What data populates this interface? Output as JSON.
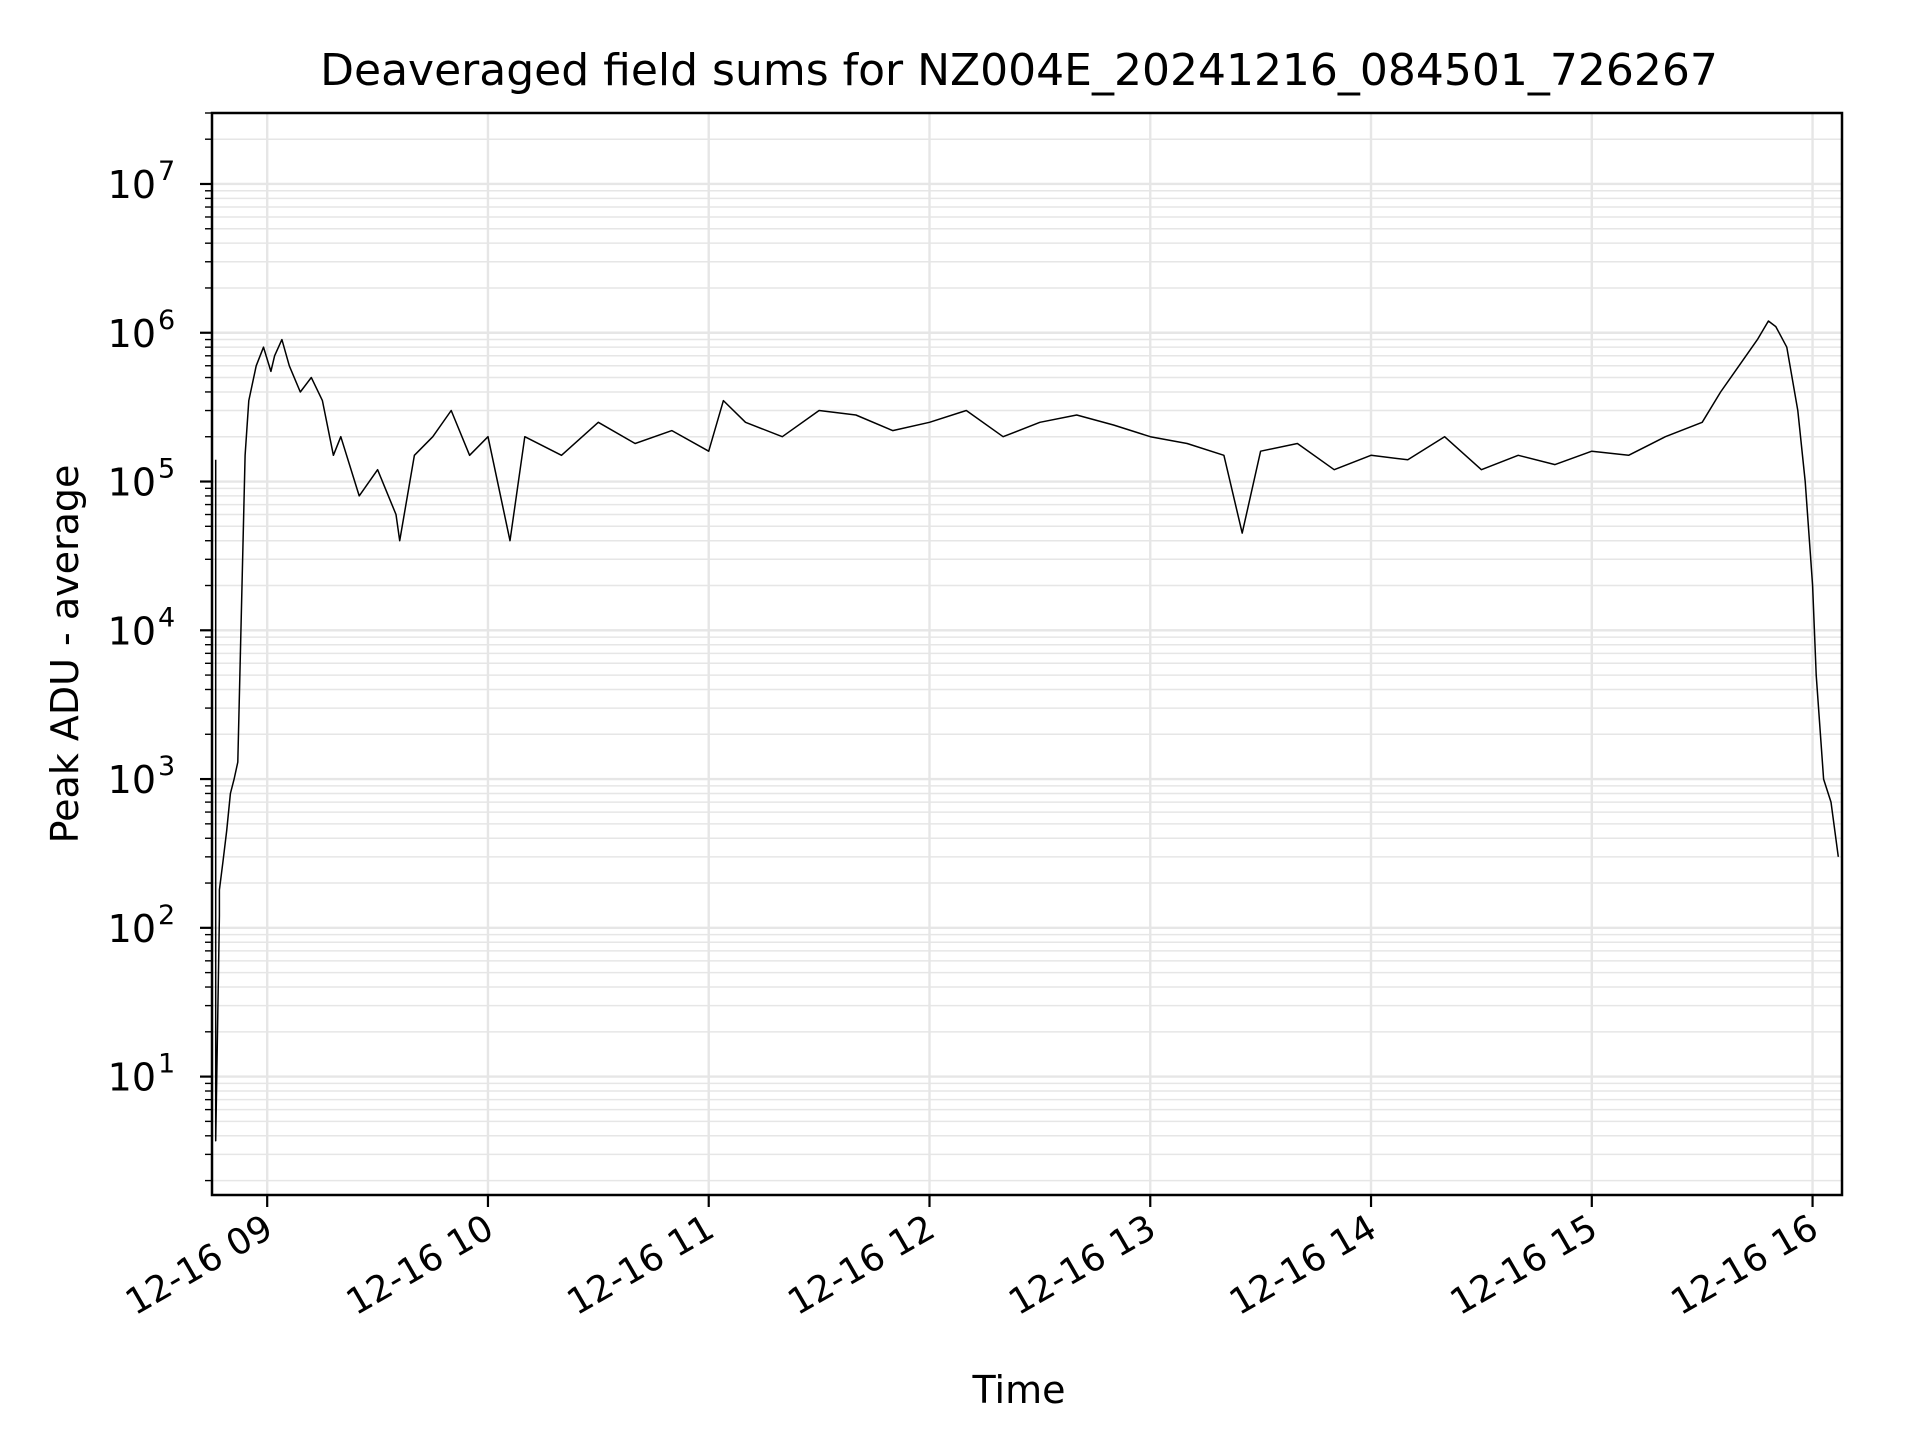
{
  "chart_data": {
    "type": "line",
    "title": "Deaveraged field sums for NZ004E_20241216_084501_726267",
    "xlabel": "Time",
    "ylabel": "Peak ADU - average",
    "yscale": "log",
    "ylim": [
      1.6,
      30000000
    ],
    "xlim": [
      "2024-12-16 08:45",
      "2024-12-16 16:08"
    ],
    "grid": true,
    "x_ticks": [
      {
        "value": "2024-12-16 09:00",
        "label": "12-16 09"
      },
      {
        "value": "2024-12-16 10:00",
        "label": "12-16 10"
      },
      {
        "value": "2024-12-16 11:00",
        "label": "12-16 11"
      },
      {
        "value": "2024-12-16 12:00",
        "label": "12-16 12"
      },
      {
        "value": "2024-12-16 13:00",
        "label": "12-16 13"
      },
      {
        "value": "2024-12-16 14:00",
        "label": "12-16 14"
      },
      {
        "value": "2024-12-16 15:00",
        "label": "12-16 15"
      },
      {
        "value": "2024-12-16 16:00",
        "label": "12-16 16"
      }
    ],
    "y_ticks": [
      {
        "value": 10,
        "base": "10",
        "exp": "1"
      },
      {
        "value": 100,
        "base": "10",
        "exp": "2"
      },
      {
        "value": 1000,
        "base": "10",
        "exp": "3"
      },
      {
        "value": 10000,
        "base": "10",
        "exp": "4"
      },
      {
        "value": 100000,
        "base": "10",
        "exp": "5"
      },
      {
        "value": 1000000,
        "base": "10",
        "exp": "6"
      },
      {
        "value": 10000000,
        "base": "10",
        "exp": "7"
      }
    ],
    "series": [
      {
        "color": "#000000",
        "x": [
          "2024-12-16 08:46",
          "2024-12-16 08:46",
          "2024-12-16 08:47",
          "2024-12-16 08:47",
          "2024-12-16 08:48",
          "2024-12-16 08:49",
          "2024-12-16 08:50",
          "2024-12-16 08:51",
          "2024-12-16 08:52",
          "2024-12-16 08:54",
          "2024-12-16 08:55",
          "2024-12-16 08:57",
          "2024-12-16 08:59",
          "2024-12-16 09:01",
          "2024-12-16 09:02",
          "2024-12-16 09:04",
          "2024-12-16 09:06",
          "2024-12-16 09:09",
          "2024-12-16 09:12",
          "2024-12-16 09:15",
          "2024-12-16 09:18",
          "2024-12-16 09:20",
          "2024-12-16 09:25",
          "2024-12-16 09:30",
          "2024-12-16 09:35",
          "2024-12-16 09:36",
          "2024-12-16 09:40",
          "2024-12-16 09:45",
          "2024-12-16 09:50",
          "2024-12-16 09:55",
          "2024-12-16 10:00",
          "2024-12-16 10:06",
          "2024-12-16 10:10",
          "2024-12-16 10:20",
          "2024-12-16 10:30",
          "2024-12-16 10:40",
          "2024-12-16 10:50",
          "2024-12-16 11:00",
          "2024-12-16 11:04",
          "2024-12-16 11:10",
          "2024-12-16 11:20",
          "2024-12-16 11:30",
          "2024-12-16 11:40",
          "2024-12-16 11:50",
          "2024-12-16 12:00",
          "2024-12-16 12:10",
          "2024-12-16 12:20",
          "2024-12-16 12:30",
          "2024-12-16 12:40",
          "2024-12-16 12:50",
          "2024-12-16 13:00",
          "2024-12-16 13:10",
          "2024-12-16 13:20",
          "2024-12-16 13:25",
          "2024-12-16 13:30",
          "2024-12-16 13:40",
          "2024-12-16 13:50",
          "2024-12-16 14:00",
          "2024-12-16 14:10",
          "2024-12-16 14:20",
          "2024-12-16 14:30",
          "2024-12-16 14:40",
          "2024-12-16 14:50",
          "2024-12-16 15:00",
          "2024-12-16 15:10",
          "2024-12-16 15:20",
          "2024-12-16 15:30",
          "2024-12-16 15:35",
          "2024-12-16 15:40",
          "2024-12-16 15:45",
          "2024-12-16 15:48",
          "2024-12-16 15:50",
          "2024-12-16 15:53",
          "2024-12-16 15:56",
          "2024-12-16 15:58",
          "2024-12-16 16:00",
          "2024-12-16 16:01",
          "2024-12-16 16:03",
          "2024-12-16 16:05",
          "2024-12-16 16:07"
        ],
        "y": [
          140000,
          3.7,
          120,
          180,
          280,
          450,
          800,
          1000,
          1300,
          150000,
          350000,
          600000,
          800000,
          550000,
          700000,
          900000,
          600000,
          400000,
          500000,
          350000,
          150000,
          200000,
          80000,
          120000,
          60000,
          40000,
          150000,
          200000,
          300000,
          150000,
          200000,
          40000,
          200000,
          150000,
          250000,
          180000,
          220000,
          160000,
          350000,
          250000,
          200000,
          300000,
          280000,
          220000,
          250000,
          300000,
          200000,
          250000,
          280000,
          240000,
          200000,
          180000,
          150000,
          45000,
          160000,
          180000,
          120000,
          150000,
          140000,
          200000,
          120000,
          150000,
          130000,
          160000,
          150000,
          200000,
          250000,
          400000,
          600000,
          900000,
          1200000,
          1100000,
          800000,
          300000,
          100000,
          20000,
          5000,
          1000,
          700,
          300
        ]
      }
    ]
  }
}
